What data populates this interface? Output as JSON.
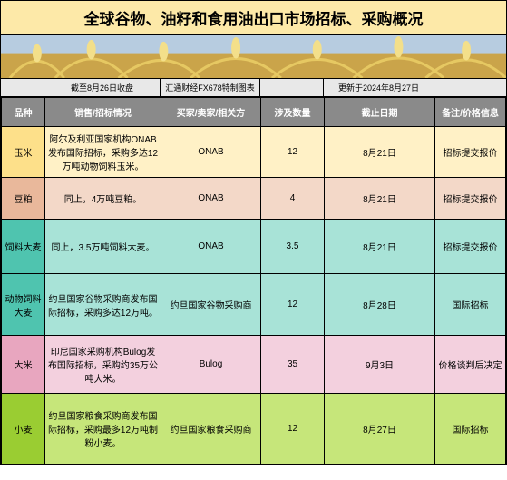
{
  "title": "全球谷物、油籽和食用油出口市场招标、采购概况",
  "info": {
    "asof": "截至8月26日收盘",
    "source": "汇通财经FX678特制图表",
    "updated": "更新于2024年8月27日"
  },
  "headers": {
    "c0": "品种",
    "c1": "销售/招标情况",
    "c2": "买家/卖家/相关方",
    "c3": "涉及数量",
    "c4": "截止日期",
    "c5": "备注/价格信息"
  },
  "colors": {
    "title_bg": "#fde9a8",
    "banner_bg": "#d9a441",
    "info_bg": "#e8e8e8",
    "header_bg": "#8a8a8a",
    "header_fg": "#ffffff",
    "row0_cat": "#fde08a",
    "row0_cell": "#fff1c6",
    "row1_cat": "#e9b89b",
    "row1_cell": "#f3d8c8",
    "row2_cat": "#4fc4af",
    "row2_cell": "#a8e3d7",
    "row3_cat": "#4fc4af",
    "row3_cell": "#a8e3d7",
    "row4_cat": "#e8a6bf",
    "row4_cell": "#f3d0de",
    "row5_cat": "#9acd32",
    "row5_cell": "#c6e67a"
  },
  "rows": [
    {
      "cat": "玉米",
      "desc": "阿尔及利亚国家机构ONAB发布国际招标，采购多达12万吨动物饲料玉米。",
      "party": "ONAB",
      "qty": "12",
      "deadline": "8月21日",
      "note": "招标提交报价"
    },
    {
      "cat": "豆粕",
      "desc": "同上，4万吨豆粕。",
      "party": "ONAB",
      "qty": "4",
      "deadline": "8月21日",
      "note": "招标提交报价"
    },
    {
      "cat": "饲料大麦",
      "desc": "同上，3.5万吨饲料大麦。",
      "party": "ONAB",
      "qty": "3.5",
      "deadline": "8月21日",
      "note": "招标提交报价"
    },
    {
      "cat": "动物饲料大麦",
      "desc": "约旦国家谷物采购商发布国际招标，采购多达12万吨。",
      "party": "约旦国家谷物采购商",
      "qty": "12",
      "deadline": "8月28日",
      "note": "国际招标"
    },
    {
      "cat": "大米",
      "desc": "印尼国家采购机构Bulog发布国际招标，采购约35万公吨大米。",
      "party": "Bulog",
      "qty": "35",
      "deadline": "9月3日",
      "note": "价格谈判后决定"
    },
    {
      "cat": "小麦",
      "desc": "约旦国家粮食采购商发布国际招标，采购最多12万吨制粉小麦。",
      "party": "约旦国家粮食采购商",
      "qty": "12",
      "deadline": "8月27日",
      "note": "国际招标"
    }
  ]
}
